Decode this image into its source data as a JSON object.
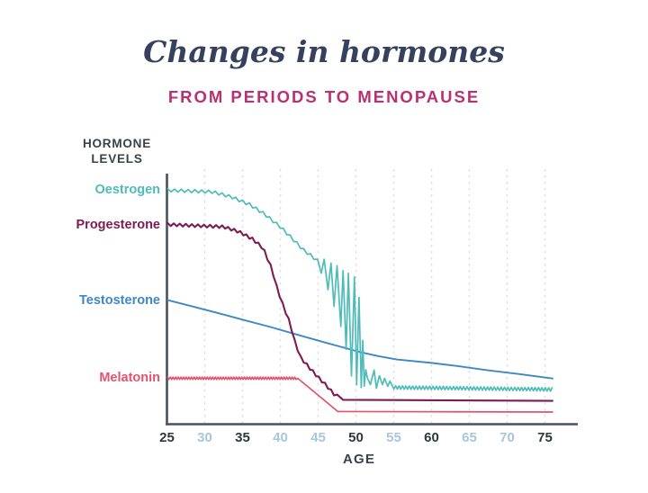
{
  "title": "Changes in hormones",
  "subtitle": "FROM PERIODS TO MENOPAUSE",
  "palette": {
    "background": "#FFFFFF",
    "title": "#36415E",
    "subtitle": "#B93073",
    "heading": "#3A4147",
    "axis": "#46525F",
    "grid": "#DFDFDF",
    "tick_dark": "#30383D",
    "tick_light": "#A9C6DB"
  },
  "chart_data": {
    "type": "line",
    "title": "Changes in hormones",
    "subtitle": "FROM PERIODS TO MENOPAUSE",
    "xlabel": "AGE",
    "ylabel_lines": [
      "HORMONE",
      "LEVELS"
    ],
    "x_range": [
      25,
      79
    ],
    "y_range": [
      0,
      100
    ],
    "y_axis_numeric": false,
    "grid": "vertical-dashed",
    "legend_position": "left-of-line-starts",
    "x_ticks": [
      {
        "value": 25,
        "emphasis": "dark"
      },
      {
        "value": 30,
        "emphasis": "light"
      },
      {
        "value": 35,
        "emphasis": "dark"
      },
      {
        "value": 40,
        "emphasis": "light"
      },
      {
        "value": 45,
        "emphasis": "light"
      },
      {
        "value": 50,
        "emphasis": "dark"
      },
      {
        "value": 55,
        "emphasis": "light"
      },
      {
        "value": 60,
        "emphasis": "dark"
      },
      {
        "value": 65,
        "emphasis": "light"
      },
      {
        "value": 70,
        "emphasis": "light"
      },
      {
        "value": 75,
        "emphasis": "dark"
      }
    ],
    "series": [
      {
        "name": "Oestrogen",
        "color": "#4EBCB8",
        "description": "wavy line, high until ~age 38, gradual fall, large erratic oscillations ages 45-51 (perimenopause), then low small waves to age 76",
        "anchors": [
          [
            25.1,
            92.2
          ],
          [
            31,
            91.6
          ],
          [
            33.5,
            89.6
          ],
          [
            36,
            86.5
          ],
          [
            38,
            82.6
          ],
          [
            40,
            77.7
          ],
          [
            41.5,
            73.4
          ],
          [
            43,
            68.8
          ],
          [
            44.3,
            65.9
          ],
          [
            45.0,
            64.2
          ],
          [
            45.4,
            59.5
          ],
          [
            45.8,
            65.0
          ],
          [
            46.3,
            53.0
          ],
          [
            46.7,
            63.5
          ],
          [
            47.1,
            46.5
          ],
          [
            47.5,
            62.5
          ],
          [
            48.0,
            38.5
          ],
          [
            48.3,
            60.5
          ],
          [
            48.7,
            29.5
          ],
          [
            49.0,
            59.5
          ],
          [
            49.4,
            19.0
          ],
          [
            49.8,
            58.0
          ],
          [
            50.1,
            15.5
          ],
          [
            50.4,
            50.0
          ],
          [
            50.7,
            14.5
          ],
          [
            50.9,
            33.0
          ],
          [
            51.1,
            15.0
          ],
          [
            51.3,
            21.5
          ],
          [
            51.5,
            18.4
          ],
          [
            51.9,
            15.6
          ],
          [
            52.4,
            21.3
          ],
          [
            52.7,
            14.2
          ],
          [
            53.1,
            19.1
          ],
          [
            53.5,
            15.6
          ],
          [
            53.8,
            18.1
          ],
          [
            54.2,
            14.9
          ],
          [
            54.5,
            17.0
          ],
          [
            54.8,
            14.5
          ],
          [
            76,
            13.7
          ]
        ],
        "textures": [
          {
            "from": 25.1,
            "to": 45.0,
            "amplitude": 0.6,
            "period": 0.9
          },
          {
            "from": 54.8,
            "to": 76,
            "amplitude": 0.65,
            "period": 0.45
          }
        ]
      },
      {
        "name": "Progesterone",
        "color": "#7D1B53",
        "description": "wavy line, high until ~age 34, steep staircase fall ages 38-48, flat low after ~age 48",
        "anchors": [
          [
            25.1,
            78.7
          ],
          [
            32.5,
            77.8
          ],
          [
            34.5,
            75.9
          ],
          [
            36.3,
            73.0
          ],
          [
            37.7,
            69.5
          ],
          [
            38.9,
            61.0
          ],
          [
            39.6,
            53.2
          ],
          [
            40.5,
            45.7
          ],
          [
            41.3,
            39.7
          ],
          [
            41.9,
            32.6
          ],
          [
            42.7,
            26.2
          ],
          [
            43.7,
            22.7
          ],
          [
            44.9,
            18.8
          ],
          [
            46.1,
            15.2
          ],
          [
            47.0,
            12.1
          ],
          [
            47.9,
            10.3
          ],
          [
            48.3,
            9.6
          ],
          [
            55,
            9.5
          ],
          [
            76,
            9.2
          ]
        ],
        "textures": [
          {
            "from": 25.1,
            "to": 47.9,
            "amplitude": 0.55,
            "period": 0.8
          }
        ]
      },
      {
        "name": "Testosterone",
        "color": "#3E88C5",
        "description": "smooth gentle decline across the whole age range",
        "anchors": [
          [
            25.1,
            48.9
          ],
          [
            28,
            46.7
          ],
          [
            31.5,
            44.0
          ],
          [
            35,
            41.2
          ],
          [
            38.7,
            38.3
          ],
          [
            42,
            35.5
          ],
          [
            45.8,
            32.3
          ],
          [
            48,
            30.5
          ],
          [
            50.6,
            28.4
          ],
          [
            53,
            26.8
          ],
          [
            55.4,
            25.5
          ],
          [
            60.1,
            24.1
          ],
          [
            63.5,
            22.9
          ],
          [
            67.3,
            21.3
          ],
          [
            71.5,
            19.8
          ],
          [
            76,
            18.0
          ]
        ],
        "textures": []
      },
      {
        "name": "Melatonin",
        "color": "#E4536E",
        "description": "finely wavy flat line until ~age 42, decline to ~age 48, flat low after",
        "anchors": [
          [
            25.1,
            18.1
          ],
          [
            42.3,
            18.1
          ],
          [
            47.6,
            5.0
          ],
          [
            60,
            4.9
          ],
          [
            76,
            4.8
          ]
        ],
        "textures": [
          {
            "from": 25.1,
            "to": 42.2,
            "amplitude": 0.45,
            "period": 0.35
          }
        ]
      }
    ]
  }
}
